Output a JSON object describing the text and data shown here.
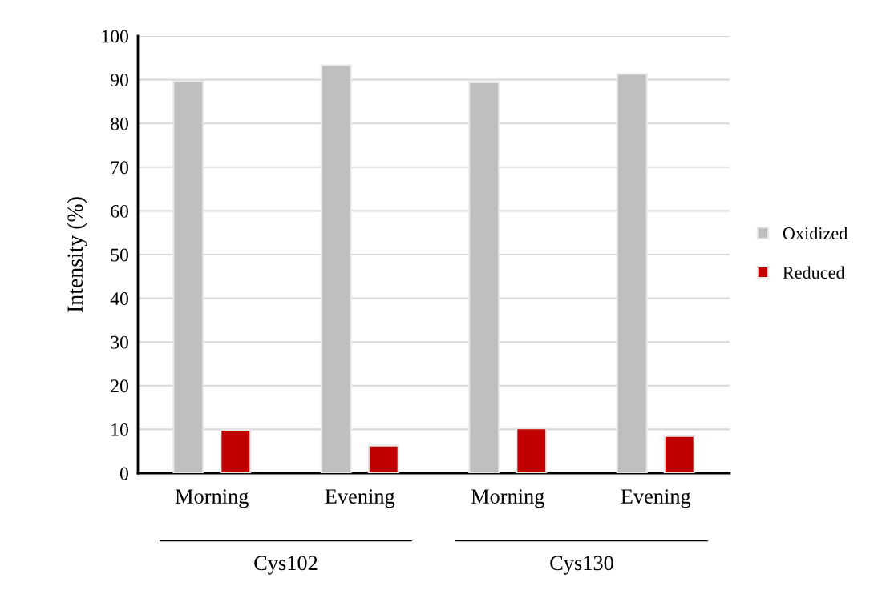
{
  "chart_data": {
    "type": "bar",
    "ylabel": "Intensity (%)",
    "categories": [
      "Morning",
      "Evening",
      "Morning",
      "Evening"
    ],
    "series": [
      {
        "name": "Oxidized",
        "color": "#bfbfbf",
        "values": [
          89.6,
          93.3,
          89.4,
          91.3
        ]
      },
      {
        "name": "Reduced",
        "color": "#c00000",
        "values": [
          9.9,
          6.3,
          10.2,
          8.5
        ]
      }
    ],
    "annotations": [
      "Cys102",
      "Cys130"
    ],
    "ylim": [
      0,
      100
    ],
    "yticks": [
      0,
      10,
      20,
      30,
      40,
      50,
      60,
      70,
      80,
      90,
      100
    ],
    "grid": "y",
    "legend": "right"
  }
}
